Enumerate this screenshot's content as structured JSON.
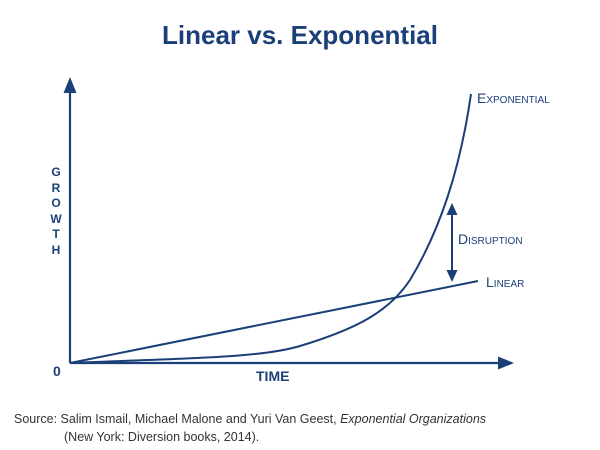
{
  "title": "Linear vs. Exponential",
  "y_axis_label": [
    "G",
    "R",
    "O",
    "W",
    "T",
    "H"
  ],
  "x_axis_label": "TIME",
  "origin_label": "0",
  "labels": {
    "exponential": "Exponential",
    "linear": "Linear",
    "disruption": "Disruption"
  },
  "source": {
    "prefix": "Source: Salim Ismail, Michael Malone and Yuri Van Geest, ",
    "book": "Exponential Organizations",
    "line2": "(New York: Diversion books, 2014)."
  },
  "colors": {
    "primary": "#1b3f78",
    "source_text": "#333333"
  }
}
